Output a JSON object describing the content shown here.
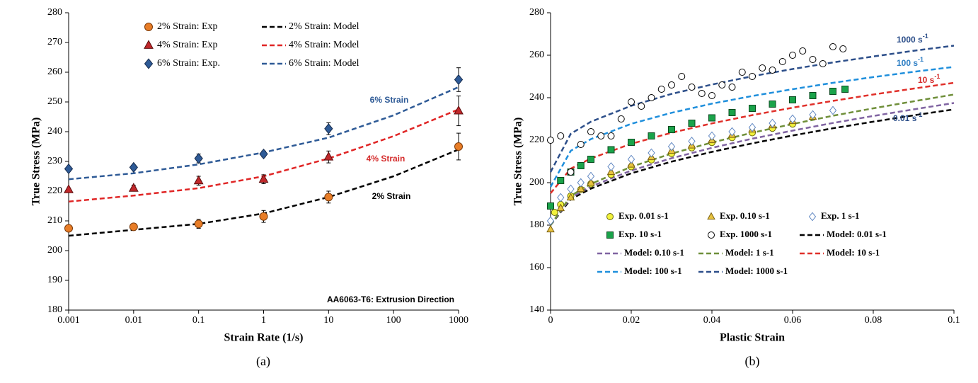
{
  "chart_data": [
    {
      "type": "scatter",
      "xscale": "log",
      "x_label": "Strain Rate (1/s)",
      "y_label": "True Stress (MPa)",
      "caption": "(a)",
      "xlim": [
        0.001,
        1000
      ],
      "ylim": [
        180,
        280
      ],
      "xticks": [
        0.001,
        0.01,
        0.1,
        1,
        10,
        100,
        1000
      ],
      "yticks": [
        180,
        190,
        200,
        210,
        220,
        230,
        240,
        250,
        260,
        270,
        280
      ],
      "grid": false,
      "legend": "upper center",
      "annotations": [
        {
          "text": "6% Strain",
          "color": "#2e5a96"
        },
        {
          "text": "4% Strain",
          "color": "#d42a2a"
        },
        {
          "text": "2% Strain",
          "color": "#000000"
        },
        {
          "text": "AA6063-T6: Extrusion Direction",
          "color": "#000000"
        }
      ],
      "series": [
        {
          "name": "2% Strain: Exp",
          "color": "#e87d27",
          "edgecolor": "#7a3a0a",
          "marker": "circle",
          "x": [
            0.001,
            0.01,
            0.1,
            1,
            10,
            1000
          ],
          "values": [
            207.5,
            208,
            209,
            211.5,
            218,
            235
          ],
          "errors": [
            1,
            0.5,
            1.5,
            2,
            2,
            4.5
          ]
        },
        {
          "name": "4% Strain: Exp",
          "color": "#c0282b",
          "edgecolor": "#5a0c0c",
          "marker": "triangle",
          "x": [
            0.001,
            0.01,
            0.1,
            1,
            10,
            1000
          ],
          "values": [
            220.5,
            221,
            223.5,
            224,
            231.5,
            247
          ],
          "errors": [
            0.5,
            1,
            1.5,
            1.5,
            2,
            5
          ]
        },
        {
          "name": "6% Strain: Exp.",
          "color": "#2e5a96",
          "edgecolor": "#15294a",
          "marker": "diamond",
          "x": [
            0.001,
            0.01,
            0.1,
            1,
            10,
            1000
          ],
          "values": [
            227.5,
            228,
            231,
            232.5,
            241,
            257.5
          ],
          "errors": [
            0.5,
            0.5,
            1.5,
            1,
            2,
            4
          ]
        },
        {
          "name": "2% Strain: Model",
          "color": "#000000",
          "line": "dashed",
          "x": [
            0.001,
            0.01,
            0.1,
            1,
            10,
            100,
            1000
          ],
          "values": [
            205,
            207,
            209,
            212.5,
            218,
            225,
            234
          ]
        },
        {
          "name": "4% Strain: Model",
          "color": "#e02525",
          "line": "dashed",
          "x": [
            0.001,
            0.01,
            0.1,
            1,
            10,
            100,
            1000
          ],
          "values": [
            216.5,
            218.5,
            221,
            225,
            231,
            238.5,
            247.5
          ]
        },
        {
          "name": "6% Strain: Model",
          "color": "#2e5a96",
          "line": "dashed",
          "x": [
            0.001,
            0.01,
            0.1,
            1,
            10,
            100,
            1000
          ],
          "values": [
            224,
            226,
            229,
            233,
            238,
            245.5,
            255
          ]
        }
      ]
    },
    {
      "type": "scatter",
      "x_label": "Plastic Strain",
      "y_label": "True Stress (MPa)",
      "caption": "(b)",
      "xlim": [
        0,
        0.1
      ],
      "ylim": [
        140,
        280
      ],
      "xticks": [
        0,
        0.02,
        0.04,
        0.06,
        0.08,
        0.1
      ],
      "yticks": [
        140,
        160,
        180,
        200,
        220,
        240,
        260,
        280
      ],
      "grid": false,
      "legend": "lower center",
      "annotations": [
        {
          "text": "1000 s",
          "sup": "-1",
          "color": "#2d4f8a"
        },
        {
          "text": "100 s",
          "sup": "-1",
          "color": "#2e7fc4"
        },
        {
          "text": "10 s",
          "sup": "-1",
          "color": "#d42a2a"
        },
        {
          "text": "0.01 s",
          "sup": "-1",
          "color": "#2d4f8a"
        }
      ],
      "series": [
        {
          "name": "Exp. 0.01 s-1",
          "color": "#f2f23c",
          "edgecolor": "#6b6b10",
          "marker": "circle",
          "x": [
            0.001,
            0.0025,
            0.005,
            0.0075,
            0.01,
            0.015,
            0.02,
            0.025,
            0.03,
            0.035,
            0.04,
            0.045,
            0.05,
            0.055,
            0.06
          ],
          "values": [
            186,
            189.7,
            193.7,
            196.8,
            199.4,
            203.8,
            207.5,
            210.7,
            213.7,
            216.4,
            218.9,
            221.2,
            223.5,
            225.6,
            227.6
          ]
        },
        {
          "name": "Exp. 0.10 s-1",
          "color": "#e8c340",
          "edgecolor": "#7a6010",
          "marker": "triangle",
          "x": [
            0,
            0.0025,
            0.005,
            0.0075,
            0.01,
            0.015,
            0.02,
            0.025,
            0.03,
            0.035,
            0.04,
            0.045,
            0.05,
            0.055,
            0.06,
            0.065
          ],
          "values": [
            178,
            188,
            193,
            197,
            200,
            205,
            208.5,
            212,
            215,
            217.5,
            220,
            222.5,
            225,
            227,
            229,
            231
          ]
        },
        {
          "name": "Exp. 1 s-1",
          "color": "#ffffff",
          "edgecolor": "#5b83c0",
          "marker": "diamond",
          "x": [
            0,
            0.0025,
            0.005,
            0.0075,
            0.01,
            0.015,
            0.02,
            0.025,
            0.03,
            0.035,
            0.04,
            0.045,
            0.05,
            0.055,
            0.06,
            0.065,
            0.07
          ],
          "values": [
            182,
            193,
            197,
            200,
            203,
            207.5,
            211,
            214,
            217,
            219.5,
            222,
            224,
            226,
            228,
            230,
            232,
            234
          ]
        },
        {
          "name": "Exp. 10 s-1",
          "color": "#1aa34a",
          "edgecolor": "#0b4a20",
          "marker": "square",
          "x": [
            0,
            0.0025,
            0.005,
            0.0075,
            0.01,
            0.015,
            0.02,
            0.025,
            0.03,
            0.035,
            0.04,
            0.045,
            0.05,
            0.055,
            0.06,
            0.065,
            0.07,
            0.073
          ],
          "values": [
            189,
            201,
            205,
            208,
            211,
            215.5,
            219,
            222,
            225,
            228,
            230.5,
            233,
            235,
            237,
            239,
            241,
            243,
            244
          ]
        },
        {
          "name": "Exp. 1000 s-1",
          "color": "#ffffff",
          "edgecolor": "#000000",
          "marker": "circle",
          "x": [
            0,
            0.0025,
            0.005,
            0.0075,
            0.01,
            0.0125,
            0.015,
            0.0175,
            0.02,
            0.0225,
            0.025,
            0.0275,
            0.03,
            0.0325,
            0.035,
            0.0375,
            0.04,
            0.0425,
            0.045,
            0.0475,
            0.05,
            0.0525,
            0.055,
            0.0575,
            0.06,
            0.0625,
            0.065,
            0.0675,
            0.07,
            0.0725
          ],
          "values": [
            220,
            222,
            205,
            218,
            224,
            222,
            222,
            230,
            238,
            236,
            240,
            244,
            246,
            250,
            245,
            242,
            241,
            246,
            245,
            252,
            250,
            254,
            253,
            257,
            260,
            262,
            258,
            256,
            264,
            263
          ]
        },
        {
          "name": "Model: 0.01 s-1",
          "color": "#000000",
          "line": "dashed",
          "x": [
            0,
            0.005,
            0.01,
            0.02,
            0.03,
            0.04,
            0.05,
            0.06,
            0.07,
            0.08,
            0.09,
            0.1
          ],
          "values": [
            180,
            192.2,
            197.2,
            204.4,
            209.9,
            214.5,
            218.5,
            222.2,
            225.6,
            228.7,
            231.7,
            234.5
          ]
        },
        {
          "name": "Model: 0.10 s-1",
          "color": "#8064a2",
          "line": "dashed",
          "x": [
            0,
            0.005,
            0.01,
            0.02,
            0.03,
            0.04,
            0.05,
            0.06,
            0.07,
            0.08,
            0.09,
            0.1
          ],
          "values": [
            180,
            192.9,
            198.2,
            205.7,
            211.5,
            216.4,
            220.7,
            224.5,
            228.1,
            231.4,
            234.5,
            237.5
          ]
        },
        {
          "name": "Model: 1 s-1",
          "color": "#6f8f3a",
          "line": "dashed",
          "x": [
            0,
            0.005,
            0.01,
            0.02,
            0.03,
            0.04,
            0.05,
            0.06,
            0.07,
            0.08,
            0.09,
            0.1
          ],
          "values": [
            180,
            193.8,
            199.4,
            207.5,
            213.7,
            218.9,
            223.5,
            227.6,
            231.5,
            235,
            238.3,
            241.5
          ]
        },
        {
          "name": "Model: 10 s-1",
          "color": "#e0302a",
          "line": "dashed",
          "x": [
            0,
            0.005,
            0.01,
            0.02,
            0.03,
            0.04,
            0.05,
            0.06,
            0.07,
            0.08,
            0.09,
            0.1
          ],
          "values": [
            195,
            206.6,
            211.4,
            218.3,
            223.5,
            227.9,
            231.8,
            235.3,
            238.5,
            241.5,
            244.3,
            247
          ]
        },
        {
          "name": "Model: 100 s-1",
          "color": "#1f8fdc",
          "line": "dashed",
          "x": [
            0,
            0.005,
            0.01,
            0.02,
            0.03,
            0.04,
            0.05,
            0.06,
            0.07,
            0.08,
            0.09,
            0.1
          ],
          "values": [
            198,
            215,
            220.5,
            227.7,
            232.9,
            237.2,
            240.8,
            244,
            247,
            249.7,
            252.2,
            254.5
          ]
        },
        {
          "name": "Model: 1000 s-1",
          "color": "#2d4f8a",
          "line": "dashed",
          "x": [
            0,
            0.005,
            0.01,
            0.02,
            0.03,
            0.04,
            0.05,
            0.06,
            0.07,
            0.08,
            0.09,
            0.1
          ],
          "values": [
            205,
            223,
            228.7,
            236.2,
            241.8,
            246.2,
            250.1,
            253.5,
            256.6,
            259.4,
            262.1,
            264.5
          ]
        }
      ]
    }
  ]
}
